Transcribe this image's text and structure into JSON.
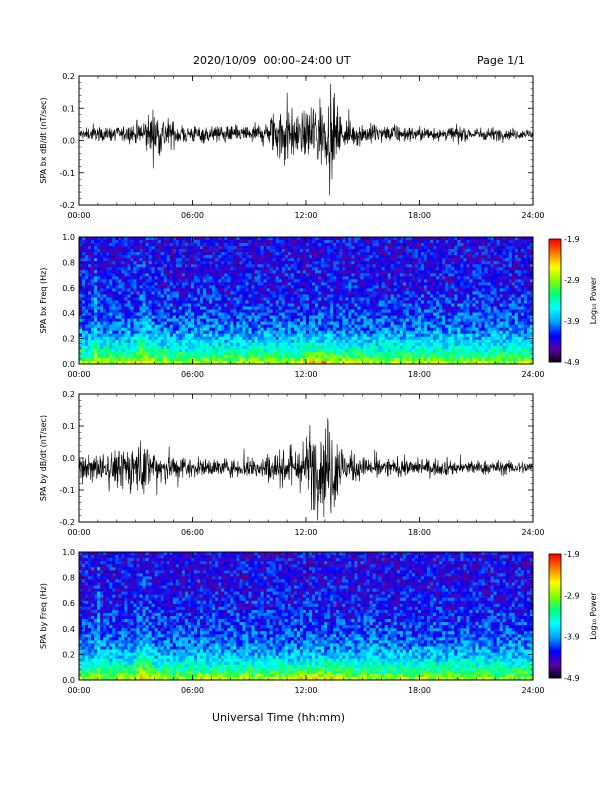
{
  "header": {
    "title": "2020/10/09  00:00–24:00 UT",
    "page": "Page 1/1"
  },
  "x_axis_label": "Universal Time (hh:mm)",
  "chart_data": [
    {
      "type": "line",
      "ylabel": "SPA bx dB/dt (nT/sec)",
      "xlim": [
        0,
        24
      ],
      "ylim": [
        -0.2,
        0.2
      ],
      "x_ticks": [
        "00:00",
        "06:00",
        "12:00",
        "18:00",
        "24:00"
      ],
      "y_ticks": [
        "0.2",
        "0.1",
        "0.0",
        "-0.1",
        "-0.2"
      ],
      "baseline": 0.02,
      "envelope": {
        "x": [
          0,
          1,
          2,
          3,
          4,
          5,
          6,
          7,
          8,
          9,
          10,
          10.5,
          11,
          11.5,
          12,
          12.5,
          13,
          13.5,
          14,
          15,
          16,
          17,
          18,
          19,
          20,
          21,
          22,
          23,
          24
        ],
        "amplitude": [
          0.015,
          0.018,
          0.02,
          0.03,
          0.07,
          0.035,
          0.025,
          0.025,
          0.022,
          0.025,
          0.04,
          0.075,
          0.11,
          0.05,
          0.06,
          0.12,
          0.08,
          0.11,
          0.04,
          0.03,
          0.025,
          0.022,
          0.02,
          0.02,
          0.02,
          0.018,
          0.018,
          0.015,
          0.015
        ]
      },
      "color": "#000000"
    },
    {
      "type": "heatmap",
      "ylabel": "SPA bx Freq (Hz)",
      "xlim": [
        0,
        24
      ],
      "ylim": [
        0,
        1.0
      ],
      "x_ticks": [
        "00:00",
        "06:00",
        "12:00",
        "18:00",
        "24:00"
      ],
      "y_ticks": [
        "1.0",
        "0.8",
        "0.6",
        "0.4",
        "0.2",
        "0.0"
      ],
      "colorbar": {
        "label": "Log₁₀ Power",
        "range": [
          -4.9,
          -1.9
        ],
        "ticks": [
          "-1.9",
          "-2.9",
          "-3.9",
          "-4.9"
        ]
      },
      "colormap": [
        "#000000",
        "#5a00a0",
        "#0000ff",
        "#00a0ff",
        "#00ffff",
        "#00ff80",
        "#80ff00",
        "#ffff00",
        "#ff8000",
        "#ff0000"
      ]
    },
    {
      "type": "line",
      "ylabel": "SPA by dB/dt (nT/sec)",
      "xlim": [
        0,
        24
      ],
      "ylim": [
        -0.2,
        0.2
      ],
      "x_ticks": [
        "00:00",
        "06:00",
        "12:00",
        "18:00",
        "24:00"
      ],
      "y_ticks": [
        "0.2",
        "0.1",
        "0.0",
        "-0.1",
        "-0.2"
      ],
      "baseline": -0.03,
      "envelope": {
        "x": [
          0,
          1,
          2,
          3,
          4,
          5,
          6,
          7,
          8,
          9,
          10,
          11,
          11.5,
          12,
          12.5,
          13,
          13.5,
          14,
          15,
          16,
          17,
          18,
          19,
          20,
          21,
          22,
          23,
          24
        ],
        "amplitude": [
          0.025,
          0.04,
          0.05,
          0.075,
          0.06,
          0.04,
          0.025,
          0.025,
          0.025,
          0.03,
          0.04,
          0.05,
          0.055,
          0.08,
          0.12,
          0.13,
          0.14,
          0.05,
          0.03,
          0.025,
          0.025,
          0.025,
          0.022,
          0.022,
          0.02,
          0.02,
          0.018,
          0.018
        ]
      },
      "color": "#000000"
    },
    {
      "type": "heatmap",
      "ylabel": "SPA by Freq (Hz)",
      "xlim": [
        0,
        24
      ],
      "ylim": [
        0,
        1.0
      ],
      "x_ticks": [
        "00:00",
        "06:00",
        "12:00",
        "18:00",
        "24:00"
      ],
      "y_ticks": [
        "1.0",
        "0.8",
        "0.6",
        "0.4",
        "0.2",
        "0.0"
      ],
      "colorbar": {
        "label": "Log₁₀ Power",
        "range": [
          -4.9,
          -1.9
        ],
        "ticks": [
          "-1.9",
          "-2.9",
          "-3.9",
          "-4.9"
        ]
      },
      "colormap": [
        "#000000",
        "#5a00a0",
        "#0000ff",
        "#00a0ff",
        "#00ffff",
        "#00ff80",
        "#80ff00",
        "#ffff00",
        "#ff8000",
        "#ff0000"
      ]
    }
  ]
}
